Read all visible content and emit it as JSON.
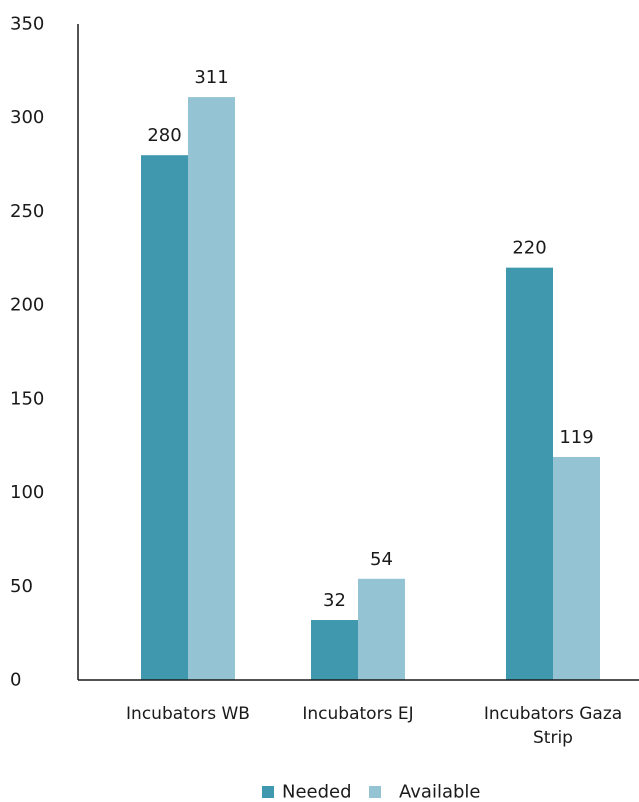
{
  "chart_data": {
    "type": "bar",
    "title": "",
    "xlabel": "",
    "ylabel": "",
    "ylim": [
      0,
      350
    ],
    "yticks": [
      0,
      50,
      100,
      150,
      200,
      250,
      300,
      350
    ],
    "categories": [
      [
        "Incubators WB"
      ],
      [
        "Incubators EJ"
      ],
      [
        "Incubators Gaza",
        "Strip"
      ]
    ],
    "series": [
      {
        "name": "Needed",
        "color": "#3f98ae",
        "values": [
          280,
          32,
          220
        ]
      },
      {
        "name": "Available",
        "color": "#94c4d4",
        "values": [
          311,
          54,
          119
        ]
      }
    ],
    "grid": false,
    "legend": "bottom-center"
  }
}
